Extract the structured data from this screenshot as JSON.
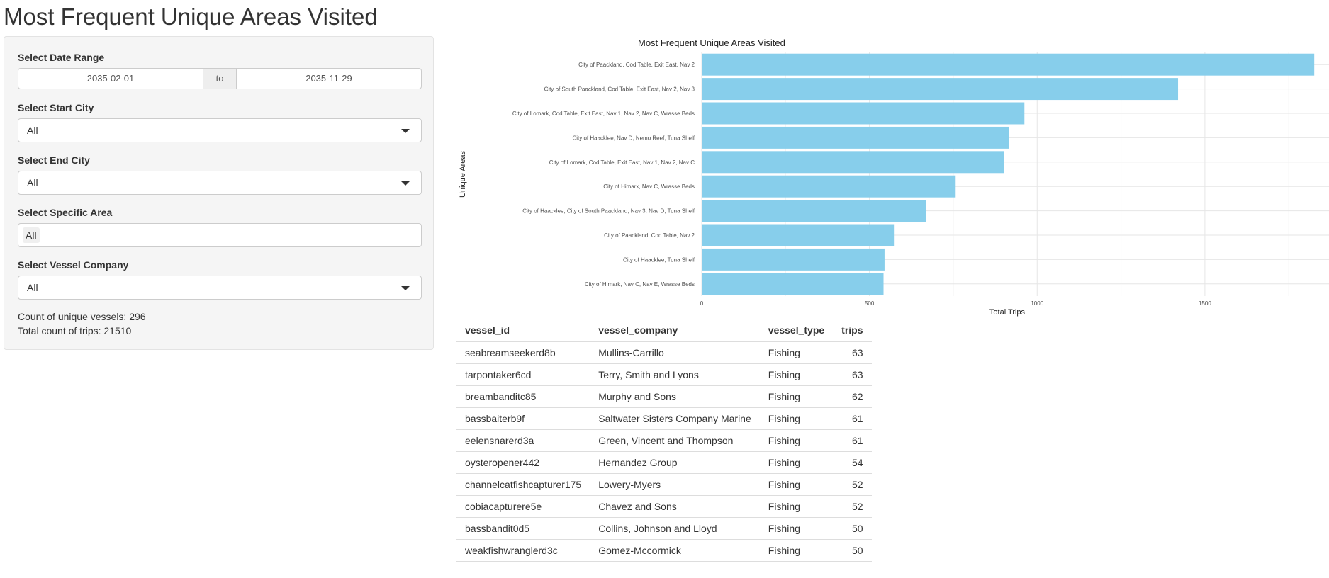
{
  "page": {
    "title": "Most Frequent Unique Areas Visited"
  },
  "sidebar": {
    "date_range": {
      "label": "Select Date Range",
      "start": "2035-02-01",
      "separator": "to",
      "end": "2035-11-29"
    },
    "start_city": {
      "label": "Select Start City",
      "value": "All"
    },
    "end_city": {
      "label": "Select End City",
      "value": "All"
    },
    "specific_area": {
      "label": "Select Specific Area",
      "value": "All"
    },
    "vessel_company": {
      "label": "Select Vessel Company",
      "value": "All"
    },
    "unique_vessels_text": "Count of unique vessels: 296",
    "total_trips_text": "Total count of trips: 21510"
  },
  "chart_data": {
    "type": "bar",
    "orientation": "horizontal",
    "title": "Most Frequent Unique Areas Visited",
    "xlabel": "Total Trips",
    "ylabel": "Unique Areas",
    "xlim": [
      0,
      1870
    ],
    "xticks": [
      0,
      500,
      1000,
      1500
    ],
    "grid": true,
    "bar_color": "#87CEEB",
    "categories": [
      "City of Paackland, Cod Table, Exit East, Nav 2",
      "City of South Paackland, Cod Table, Exit East, Nav 2, Nav 3",
      "City of Lomark, Cod Table, Exit East, Nav 1, Nav 2, Nav C, Wrasse Beds",
      "City of Haacklee, Nav D, Nemo Reef, Tuna Shelf",
      "City of Lomark, Cod Table, Exit East, Nav 1, Nav 2, Nav C",
      "City of Himark, Nav C, Wrasse Beds",
      "City of Haacklee, City of South Paackland, Nav 3, Nav D, Tuna Shelf",
      "City of Paackland, Cod Table, Nav 2",
      "City of Haacklee, Tuna Shelf",
      "City of Himark, Nav C, Nav E, Wrasse Beds"
    ],
    "values": [
      1826,
      1420,
      962,
      915,
      902,
      757,
      669,
      573,
      545,
      542
    ]
  },
  "table": {
    "headers": [
      "vessel_id",
      "vessel_company",
      "vessel_type",
      "trips"
    ],
    "rows": [
      [
        "seabreamseekerd8b",
        "Mullins-Carrillo",
        "Fishing",
        "63"
      ],
      [
        "tarpontaker6cd",
        "Terry, Smith and Lyons",
        "Fishing",
        "63"
      ],
      [
        "breambanditc85",
        "Murphy and Sons",
        "Fishing",
        "62"
      ],
      [
        "bassbaiterb9f",
        "Saltwater Sisters Company Marine",
        "Fishing",
        "61"
      ],
      [
        "eelensnarerd3a",
        "Green, Vincent and Thompson",
        "Fishing",
        "61"
      ],
      [
        "oysteropener442",
        "Hernandez Group",
        "Fishing",
        "54"
      ],
      [
        "channelcatfishcapturer175",
        "Lowery-Myers",
        "Fishing",
        "52"
      ],
      [
        "cobiacapturere5e",
        "Chavez and Sons",
        "Fishing",
        "52"
      ],
      [
        "bassbandit0d5",
        "Collins, Johnson and Lloyd",
        "Fishing",
        "50"
      ],
      [
        "weakfishwranglerd3c",
        "Gomez-Mccormick",
        "Fishing",
        "50"
      ]
    ]
  }
}
